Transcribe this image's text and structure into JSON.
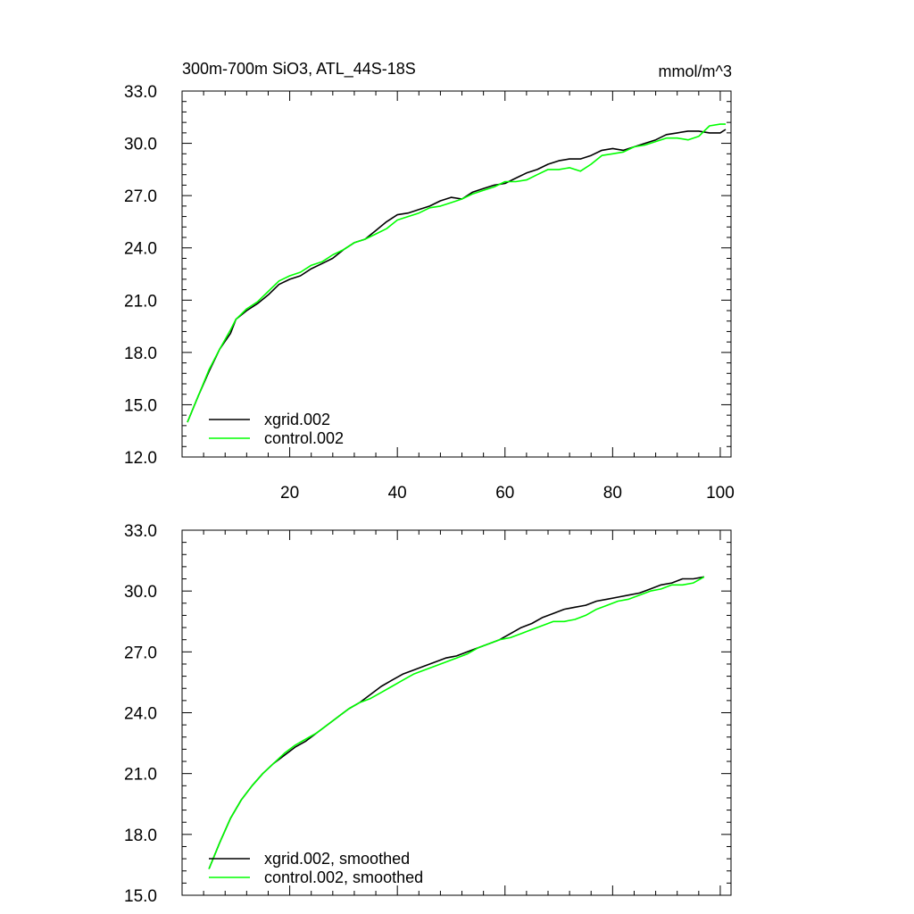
{
  "figure": {
    "title_left": "300m-700m SiO3, ATL_44S-18S",
    "title_right": "mmol/m^3"
  },
  "chart_data": [
    {
      "type": "line",
      "title": "300m-700m SiO3, ATL_44S-18S",
      "units": "mmol/m^3",
      "xlim": [
        0,
        102
      ],
      "ylim": [
        12.0,
        33.0
      ],
      "xticks": [
        20,
        40,
        60,
        80,
        100
      ],
      "xtick_labels": [
        "20",
        "40",
        "60",
        "80",
        "100"
      ],
      "yticks": [
        12.0,
        15.0,
        18.0,
        21.0,
        24.0,
        27.0,
        30.0,
        33.0
      ],
      "ytick_labels": [
        "12.0",
        "15.0",
        "18.0",
        "21.0",
        "24.0",
        "27.0",
        "30.0",
        "33.0"
      ],
      "legend_position": "bottom-left",
      "series": [
        {
          "name": "xgrid.002",
          "color": "#000000",
          "points": [
            [
              1,
              14.0
            ],
            [
              3,
              15.5
            ],
            [
              5,
              16.9
            ],
            [
              7,
              18.2
            ],
            [
              9,
              19.1
            ],
            [
              10,
              19.9
            ],
            [
              12,
              20.4
            ],
            [
              14,
              20.8
            ],
            [
              16,
              21.3
            ],
            [
              18,
              21.9
            ],
            [
              20,
              22.2
            ],
            [
              22,
              22.4
            ],
            [
              24,
              22.8
            ],
            [
              26,
              23.1
            ],
            [
              28,
              23.4
            ],
            [
              30,
              23.9
            ],
            [
              32,
              24.3
            ],
            [
              34,
              24.5
            ],
            [
              36,
              25.0
            ],
            [
              38,
              25.5
            ],
            [
              40,
              25.9
            ],
            [
              42,
              26.0
            ],
            [
              44,
              26.2
            ],
            [
              46,
              26.4
            ],
            [
              48,
              26.7
            ],
            [
              50,
              26.9
            ],
            [
              52,
              26.8
            ],
            [
              54,
              27.2
            ],
            [
              56,
              27.4
            ],
            [
              58,
              27.6
            ],
            [
              60,
              27.7
            ],
            [
              62,
              28.0
            ],
            [
              64,
              28.3
            ],
            [
              66,
              28.5
            ],
            [
              68,
              28.8
            ],
            [
              70,
              29.0
            ],
            [
              72,
              29.1
            ],
            [
              74,
              29.1
            ],
            [
              76,
              29.3
            ],
            [
              78,
              29.6
            ],
            [
              80,
              29.7
            ],
            [
              82,
              29.6
            ],
            [
              84,
              29.8
            ],
            [
              86,
              30.0
            ],
            [
              88,
              30.2
            ],
            [
              90,
              30.5
            ],
            [
              92,
              30.6
            ],
            [
              94,
              30.7
            ],
            [
              96,
              30.7
            ],
            [
              98,
              30.6
            ],
            [
              100,
              30.6
            ],
            [
              101,
              30.8
            ]
          ]
        },
        {
          "name": "control.002",
          "color": "#00ff00",
          "points": [
            [
              1,
              14.0
            ],
            [
              3,
              15.5
            ],
            [
              5,
              17.0
            ],
            [
              7,
              18.2
            ],
            [
              9,
              19.3
            ],
            [
              10,
              19.9
            ],
            [
              12,
              20.5
            ],
            [
              14,
              20.9
            ],
            [
              16,
              21.5
            ],
            [
              18,
              22.1
            ],
            [
              20,
              22.4
            ],
            [
              22,
              22.6
            ],
            [
              24,
              23.0
            ],
            [
              26,
              23.2
            ],
            [
              28,
              23.6
            ],
            [
              30,
              23.9
            ],
            [
              32,
              24.3
            ],
            [
              34,
              24.5
            ],
            [
              36,
              24.8
            ],
            [
              38,
              25.1
            ],
            [
              40,
              25.6
            ],
            [
              42,
              25.8
            ],
            [
              44,
              26.0
            ],
            [
              46,
              26.3
            ],
            [
              48,
              26.4
            ],
            [
              50,
              26.6
            ],
            [
              52,
              26.8
            ],
            [
              54,
              27.1
            ],
            [
              56,
              27.3
            ],
            [
              58,
              27.5
            ],
            [
              60,
              27.8
            ],
            [
              62,
              27.8
            ],
            [
              64,
              27.9
            ],
            [
              66,
              28.2
            ],
            [
              68,
              28.5
            ],
            [
              70,
              28.5
            ],
            [
              72,
              28.6
            ],
            [
              74,
              28.4
            ],
            [
              76,
              28.8
            ],
            [
              78,
              29.3
            ],
            [
              80,
              29.4
            ],
            [
              82,
              29.5
            ],
            [
              84,
              29.8
            ],
            [
              86,
              29.9
            ],
            [
              88,
              30.1
            ],
            [
              90,
              30.3
            ],
            [
              92,
              30.3
            ],
            [
              94,
              30.2
            ],
            [
              96,
              30.4
            ],
            [
              98,
              31.0
            ],
            [
              100,
              31.1
            ],
            [
              101,
              31.1
            ]
          ]
        }
      ]
    },
    {
      "type": "line",
      "title": "",
      "units": "",
      "xlim": [
        0,
        102
      ],
      "ylim": [
        15.0,
        33.0
      ],
      "xticks": [
        20,
        40,
        60,
        80,
        100
      ],
      "xtick_labels": [],
      "yticks": [
        15.0,
        18.0,
        21.0,
        24.0,
        27.0,
        30.0,
        33.0
      ],
      "ytick_labels": [
        "15.0",
        "18.0",
        "21.0",
        "24.0",
        "27.0",
        "30.0",
        "33.0"
      ],
      "legend_position": "bottom-left",
      "series": [
        {
          "name": "xgrid.002, smoothed",
          "color": "#000000",
          "points": [
            [
              5,
              16.3
            ],
            [
              7,
              17.6
            ],
            [
              9,
              18.8
            ],
            [
              11,
              19.7
            ],
            [
              13,
              20.4
            ],
            [
              15,
              21.0
            ],
            [
              17,
              21.5
            ],
            [
              19,
              21.9
            ],
            [
              21,
              22.3
            ],
            [
              23,
              22.6
            ],
            [
              25,
              23.0
            ],
            [
              27,
              23.4
            ],
            [
              29,
              23.8
            ],
            [
              31,
              24.2
            ],
            [
              33,
              24.5
            ],
            [
              35,
              24.9
            ],
            [
              37,
              25.3
            ],
            [
              39,
              25.6
            ],
            [
              41,
              25.9
            ],
            [
              43,
              26.1
            ],
            [
              45,
              26.3
            ],
            [
              47,
              26.5
            ],
            [
              49,
              26.7
            ],
            [
              51,
              26.8
            ],
            [
              53,
              27.0
            ],
            [
              55,
              27.2
            ],
            [
              57,
              27.4
            ],
            [
              59,
              27.6
            ],
            [
              61,
              27.9
            ],
            [
              63,
              28.2
            ],
            [
              65,
              28.4
            ],
            [
              67,
              28.7
            ],
            [
              69,
              28.9
            ],
            [
              71,
              29.1
            ],
            [
              73,
              29.2
            ],
            [
              75,
              29.3
            ],
            [
              77,
              29.5
            ],
            [
              79,
              29.6
            ],
            [
              81,
              29.7
            ],
            [
              83,
              29.8
            ],
            [
              85,
              29.9
            ],
            [
              87,
              30.1
            ],
            [
              89,
              30.3
            ],
            [
              91,
              30.4
            ],
            [
              93,
              30.6
            ],
            [
              95,
              30.6
            ],
            [
              97,
              30.7
            ]
          ]
        },
        {
          "name": "control.002, smoothed",
          "color": "#00ff00",
          "points": [
            [
              5,
              16.3
            ],
            [
              7,
              17.6
            ],
            [
              9,
              18.8
            ],
            [
              11,
              19.7
            ],
            [
              13,
              20.4
            ],
            [
              15,
              21.0
            ],
            [
              17,
              21.5
            ],
            [
              19,
              22.0
            ],
            [
              21,
              22.4
            ],
            [
              23,
              22.7
            ],
            [
              25,
              23.0
            ],
            [
              27,
              23.4
            ],
            [
              29,
              23.8
            ],
            [
              31,
              24.2
            ],
            [
              33,
              24.5
            ],
            [
              35,
              24.7
            ],
            [
              37,
              25.0
            ],
            [
              39,
              25.3
            ],
            [
              41,
              25.6
            ],
            [
              43,
              25.9
            ],
            [
              45,
              26.1
            ],
            [
              47,
              26.3
            ],
            [
              49,
              26.5
            ],
            [
              51,
              26.7
            ],
            [
              53,
              26.9
            ],
            [
              55,
              27.2
            ],
            [
              57,
              27.4
            ],
            [
              59,
              27.6
            ],
            [
              61,
              27.7
            ],
            [
              63,
              27.9
            ],
            [
              65,
              28.1
            ],
            [
              67,
              28.3
            ],
            [
              69,
              28.5
            ],
            [
              71,
              28.5
            ],
            [
              73,
              28.6
            ],
            [
              75,
              28.8
            ],
            [
              77,
              29.1
            ],
            [
              79,
              29.3
            ],
            [
              81,
              29.5
            ],
            [
              83,
              29.6
            ],
            [
              85,
              29.8
            ],
            [
              87,
              30.0
            ],
            [
              89,
              30.1
            ],
            [
              91,
              30.3
            ],
            [
              93,
              30.3
            ],
            [
              95,
              30.4
            ],
            [
              97,
              30.7
            ]
          ]
        }
      ]
    }
  ]
}
